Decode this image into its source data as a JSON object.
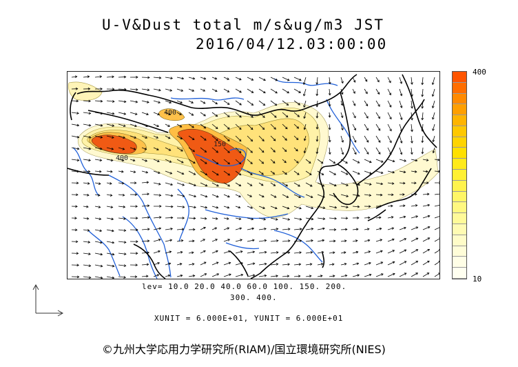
{
  "title": {
    "line1": "U-V&Dust total m/s&ug/m3 JST",
    "line2": "2016/04/12.03:00:00"
  },
  "map": {
    "region": "East Asia dust and wind forecast",
    "contour_labels": [
      "400",
      "400",
      "150"
    ],
    "colors": {
      "coastline": "#000000",
      "rivers": "#1f5fd8",
      "vectors": "#000000",
      "dust_levels": [
        "#fffbe0",
        "#fff4b8",
        "#ffee99",
        "#ffe57a",
        "#ffd94f",
        "#ffc52a",
        "#ff9e19",
        "#ff6a0c",
        "#f24e00"
      ]
    }
  },
  "colorbar": {
    "top_label": "400",
    "bottom_label": "10",
    "colors": [
      "#ff5500",
      "#ff6e00",
      "#ff8a00",
      "#ff9f00",
      "#ffb400",
      "#ffc800",
      "#ffd400",
      "#ffe000",
      "#ffea1a",
      "#fff033",
      "#fff34d",
      "#fff666",
      "#fff880",
      "#fffa99",
      "#fffbb3",
      "#fffcc8",
      "#fffdd8",
      "#fffee6",
      "#fffff0"
    ]
  },
  "legend": {
    "levels_line1": "lev= 10.0 20.0 40.0 60.0 100. 150. 200.",
    "levels_line2": "300. 400.",
    "units": "XUNIT = 6.000E+01, YUNIT = 6.000E+01"
  },
  "copyright": "©九州大学応用力学研究所(RIAM)/国立環境研究所(NIES)"
}
